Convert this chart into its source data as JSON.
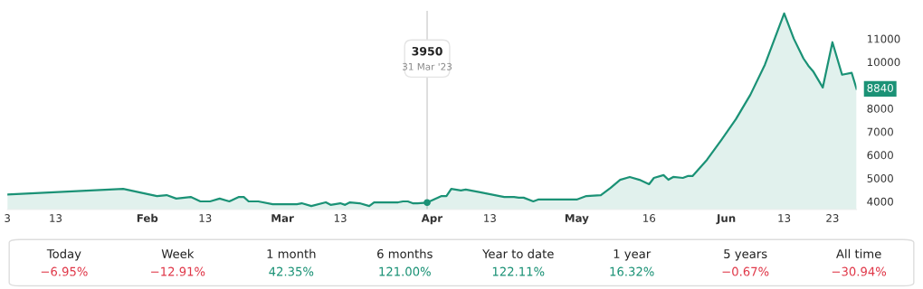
{
  "chart_data": [
    {
      "type": "area",
      "color": "#1b9276",
      "x": [
        "2023-01-03",
        "2023-01-27",
        "2023-02-03",
        "2023-02-05",
        "2023-02-07",
        "2023-02-10",
        "2023-02-12",
        "2023-02-14",
        "2023-02-16",
        "2023-02-18",
        "2023-02-20",
        "2023-02-21",
        "2023-02-22",
        "2023-02-24",
        "2023-02-27",
        "2023-03-04",
        "2023-03-05",
        "2023-03-07",
        "2023-03-10",
        "2023-03-11",
        "2023-03-13",
        "2023-03-14",
        "2023-03-15",
        "2023-03-17",
        "2023-03-19",
        "2023-03-20",
        "2023-03-25",
        "2023-03-26",
        "2023-03-27",
        "2023-03-28",
        "2023-03-29",
        "2023-03-31",
        "2023-04-03",
        "2023-04-04",
        "2023-04-05",
        "2023-04-07",
        "2023-04-08",
        "2023-04-10",
        "2023-04-11",
        "2023-04-15",
        "2023-04-16",
        "2023-04-18",
        "2023-04-19",
        "2023-04-20",
        "2023-04-22",
        "2023-04-23",
        "2023-04-25",
        "2023-04-28",
        "2023-05-01",
        "2023-05-03",
        "2023-05-06",
        "2023-05-08",
        "2023-05-10",
        "2023-05-12",
        "2023-05-14",
        "2023-05-16",
        "2023-05-17",
        "2023-05-19",
        "2023-05-20",
        "2023-05-21",
        "2023-05-23",
        "2023-05-24",
        "2023-05-25",
        "2023-05-28",
        "2023-05-31",
        "2023-06-03",
        "2023-06-06",
        "2023-06-09",
        "2023-06-13",
        "2023-06-15",
        "2023-06-17",
        "2023-06-18",
        "2023-06-19",
        "2023-06-21",
        "2023-06-23",
        "2023-06-25",
        "2023-06-27",
        "2023-06-28"
      ],
      "values": [
        4300,
        4540,
        4230,
        4270,
        4120,
        4190,
        4000,
        4000,
        4120,
        4000,
        4190,
        4190,
        4000,
        4000,
        3880,
        3880,
        3920,
        3800,
        3960,
        3850,
        3920,
        3850,
        3960,
        3920,
        3800,
        3960,
        3960,
        4000,
        4000,
        3920,
        3920,
        3950,
        4230,
        4230,
        4540,
        4470,
        4510,
        4430,
        4390,
        4230,
        4190,
        4190,
        4160,
        4160,
        4000,
        4080,
        4080,
        4080,
        4080,
        4230,
        4270,
        4580,
        4930,
        5050,
        4930,
        4740,
        5010,
        5130,
        4930,
        5050,
        5010,
        5090,
        5090,
        5790,
        6650,
        7540,
        8590,
        9880,
        12090,
        11000,
        10150,
        9840,
        9600,
        8900,
        10850,
        9450,
        9530,
        8840
      ],
      "xticks": [
        {
          "value": "2023-01-03",
          "label": "3"
        },
        {
          "value": "2023-01-13",
          "label": "13"
        },
        {
          "value": "2023-02-01",
          "label": "Feb"
        },
        {
          "value": "2023-02-13",
          "label": "13"
        },
        {
          "value": "2023-03-01",
          "label": "Mar"
        },
        {
          "value": "2023-03-13",
          "label": "13"
        },
        {
          "value": "2023-04-01",
          "label": "Apr"
        },
        {
          "value": "2023-04-13",
          "label": "13"
        },
        {
          "value": "2023-05-01",
          "label": "May"
        },
        {
          "value": "2023-05-16",
          "label": "16"
        },
        {
          "value": "2023-06-01",
          "label": "Jun"
        },
        {
          "value": "2023-06-13",
          "label": "13"
        },
        {
          "value": "2023-06-23",
          "label": "23"
        }
      ],
      "xlim": [
        "2023-01-03",
        "2023-06-28"
      ],
      "ylim": [
        3650,
        12200
      ],
      "yticks": [
        4000,
        5000,
        6000,
        7000,
        8000,
        10000,
        11000
      ],
      "ref_lines": [
        {
          "axis": "x",
          "value": "2023-03-31",
          "color": "#d0d0d0"
        }
      ],
      "annotations": [
        "3950\n31 Mar '23",
        {
          "text": "8840",
          "x": "2023-06-28",
          "y": 8840
        }
      ],
      "grid": false,
      "legend": false
    },
    {
      "type": "other",
      "categories": [
        "Today",
        "Week",
        "1 month",
        "6 months",
        "Year to date",
        "1 year",
        "5 years",
        "All time"
      ],
      "values": [
        -6.95,
        -12.91,
        42.35,
        121.0,
        122.11,
        16.32,
        -0.67,
        -30.94
      ],
      "value_labels": [
        "−6.95%",
        "−12.91%",
        "42.35%",
        "121.00%",
        "122.11%",
        "16.32%",
        "−0.67%",
        "−30.94%"
      ],
      "colors": [
        "#e0394a",
        "#e0394a",
        "#1b9276",
        "#1b9276",
        "#1b9276",
        "#1b9276",
        "#e0394a",
        "#e0394a"
      ]
    }
  ]
}
